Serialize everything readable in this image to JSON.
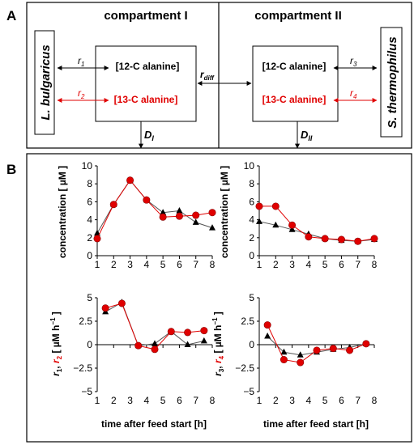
{
  "panel_labels": {
    "a": "A",
    "b": "B"
  },
  "diagram": {
    "compartment1_title": "compartment I",
    "compartment2_title": "compartment II",
    "organism_left": "L. bulgaricus",
    "organism_right": "S. thermophilus",
    "box1_line1": "[12-C alanine]",
    "box1_line2": "[13-C alanine]",
    "box2_line1": "[12-C alanine]",
    "box2_line2": "[13-C alanine]",
    "r1": "r",
    "r1_sub": "1",
    "r2": "r",
    "r2_sub": "2",
    "r3": "r",
    "r3_sub": "3",
    "r4": "r",
    "r4_sub": "4",
    "rdiff": "r",
    "rdiff_sub": "diff",
    "d1": "D",
    "d1_sub": "I",
    "d2": "D",
    "d2_sub": "II",
    "colors": {
      "black": "#000000",
      "red": "#e00000"
    }
  },
  "chart_data": [
    {
      "type": "line",
      "panel": "top-left",
      "ylabel": "concentration [ µM ]",
      "xlim": [
        1,
        8
      ],
      "ylim": [
        0,
        10
      ],
      "xticks": [
        "1",
        "2",
        "3",
        "4",
        "5",
        "6",
        "7",
        "8"
      ],
      "yticks": [
        "0",
        "2",
        "4",
        "6",
        "8",
        "10"
      ],
      "series": [
        {
          "color": "#000000",
          "marker": "triangle",
          "x": [
            1,
            2,
            3,
            4,
            5,
            6,
            7,
            8
          ],
          "y": [
            2.5,
            5.7,
            8.4,
            6.2,
            4.8,
            5.0,
            3.7,
            3.1
          ]
        },
        {
          "color": "#e00000",
          "marker": "circle",
          "x": [
            1,
            2,
            3,
            4,
            5,
            6,
            7,
            8
          ],
          "y": [
            1.9,
            5.7,
            8.4,
            6.2,
            4.3,
            4.4,
            4.5,
            4.8
          ]
        }
      ]
    },
    {
      "type": "line",
      "panel": "top-right",
      "xlim": [
        1,
        8
      ],
      "ylim": [
        0,
        10
      ],
      "xticks": [
        "1",
        "2",
        "3",
        "4",
        "5",
        "6",
        "7",
        "8"
      ],
      "yticks": [
        "0",
        "2",
        "4",
        "6",
        "8",
        "10"
      ],
      "series": [
        {
          "color": "#000000",
          "marker": "triangle",
          "x": [
            1,
            2,
            3,
            4,
            5,
            6,
            7,
            8
          ],
          "y": [
            3.8,
            3.4,
            2.9,
            2.4,
            1.9,
            1.7,
            1.6,
            1.8
          ]
        },
        {
          "color": "#e00000",
          "marker": "circle",
          "x": [
            1,
            2,
            3,
            4,
            5,
            6,
            7,
            8
          ],
          "y": [
            5.5,
            5.5,
            3.4,
            2.1,
            1.9,
            1.8,
            1.6,
            1.9
          ]
        }
      ]
    },
    {
      "type": "line",
      "panel": "bottom-left",
      "ylabel_parts": [
        "r",
        "1",
        ", ",
        "r",
        "2",
        " [ µM h",
        "−1",
        " ]"
      ],
      "xlabel": "time after feed start [h]",
      "xlim": [
        1,
        8
      ],
      "ylim": [
        -5,
        5
      ],
      "xticks": [
        "1",
        "2",
        "3",
        "4",
        "5",
        "6",
        "7",
        "8"
      ],
      "yticks": [
        "−5",
        "−2.5",
        "0",
        "2.5",
        "5"
      ],
      "series": [
        {
          "color": "#000000",
          "marker": "triangle",
          "x": [
            1.5,
            2.5,
            3.5,
            4.5,
            5.5,
            6.5,
            7.5
          ],
          "y": [
            3.5,
            4.5,
            -0.1,
            0.1,
            1.4,
            0.0,
            0.4
          ]
        },
        {
          "color": "#e00000",
          "marker": "circle",
          "x": [
            1.5,
            2.5,
            3.5,
            4.5,
            5.5,
            6.5,
            7.5
          ],
          "y": [
            3.9,
            4.4,
            -0.1,
            -0.5,
            1.4,
            1.3,
            1.5
          ]
        }
      ]
    },
    {
      "type": "line",
      "panel": "bottom-right",
      "ylabel_parts": [
        "r",
        "3",
        ", ",
        "r",
        "4",
        " [ µM h",
        "−1",
        " ]"
      ],
      "xlabel": "time after feed start [h]",
      "xlim": [
        1,
        8
      ],
      "ylim": [
        -5,
        5
      ],
      "xticks": [
        "1",
        "2",
        "3",
        "4",
        "5",
        "6",
        "7",
        "8"
      ],
      "yticks": [
        "−5",
        "−2.5",
        "0",
        "2.5",
        "5"
      ],
      "series": [
        {
          "color": "#000000",
          "marker": "triangle",
          "x": [
            1.5,
            2.5,
            3.5,
            4.5,
            5.5,
            6.5,
            7.5
          ],
          "y": [
            0.9,
            -0.8,
            -1.1,
            -0.8,
            -0.5,
            -0.3,
            0.1
          ]
        },
        {
          "color": "#e00000",
          "marker": "circle",
          "x": [
            1.5,
            2.5,
            3.5,
            4.5,
            5.5,
            6.5,
            7.5
          ],
          "y": [
            2.1,
            -1.6,
            -1.9,
            -0.6,
            -0.4,
            -0.6,
            0.1
          ]
        }
      ]
    }
  ]
}
